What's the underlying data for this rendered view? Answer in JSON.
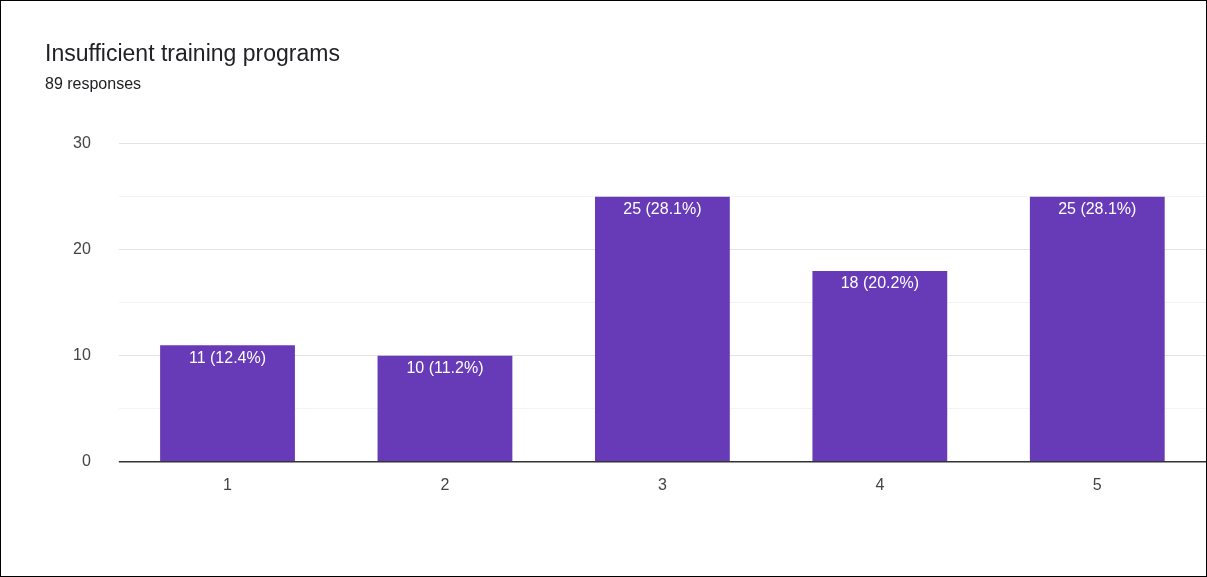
{
  "chart_data": {
    "type": "bar",
    "title": "Insufficient training programs",
    "subtitle": "89 responses",
    "categories": [
      "1",
      "2",
      "3",
      "4",
      "5"
    ],
    "values": [
      11,
      10,
      25,
      18,
      25
    ],
    "value_labels": [
      "11 (12.4%)",
      "10 (11.2%)",
      "25 (28.1%)",
      "18 (20.2%)",
      "25 (28.1%)"
    ],
    "color": "#673ab7",
    "ylim": [
      0,
      30
    ],
    "yticks": [
      0,
      {
        "value": 5,
        "label": null
      },
      10,
      {
        "value": 15,
        "label": null
      },
      20,
      {
        "value": 25,
        "label": null
      },
      30
    ],
    "grid": "y",
    "legend": false
  }
}
